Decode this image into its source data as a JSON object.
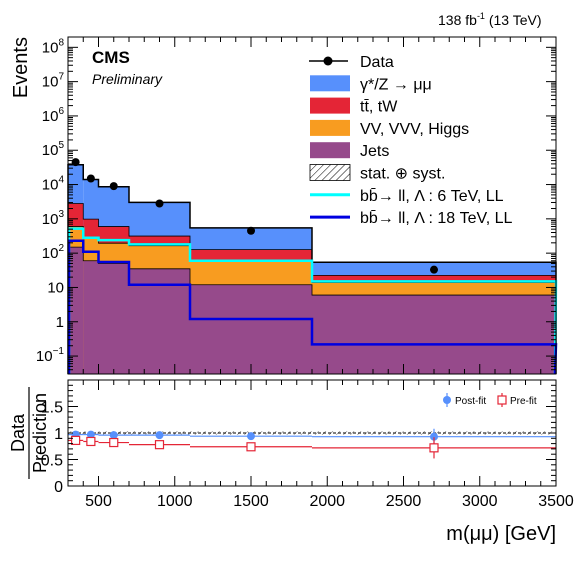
{
  "header": {
    "lumi": "138 fb",
    "lumi_exp": "-1",
    "energy": " (13 TeV)",
    "experiment": "CMS",
    "status": "Preliminary"
  },
  "chart_data": [
    {
      "type": "bar",
      "name": "main",
      "ylabel": "Events",
      "yscale": "log",
      "ylim": [
        0.03,
        200000000
      ],
      "xlim": [
        300,
        3500
      ],
      "bin_edges": [
        300,
        400,
        500,
        700,
        1100,
        1900,
        3500
      ],
      "stack": [
        {
          "name": "Jets",
          "color": "#964a8b",
          "values": [
            150,
            60,
            50,
            35,
            12,
            6
          ]
        },
        {
          "name": "VV, VVV, Higgs",
          "color": "#f89c20",
          "values": [
            450,
            220,
            145,
            130,
            45,
            8
          ]
        },
        {
          "name": "tt̄, tW",
          "color": "#e42536",
          "values": [
            2200,
            700,
            400,
            150,
            70,
            8.5
          ]
        },
        {
          "name": "γ*/Z → μμ",
          "color": "#5790fc",
          "values": [
            35000,
            13000,
            8000,
            2700,
            420,
            32
          ]
        }
      ],
      "data_points": {
        "name": "Data",
        "x": [
          350,
          450,
          600,
          900,
          1500,
          2700
        ],
        "y": [
          45000,
          15000,
          9000,
          2800,
          450,
          33
        ]
      },
      "signals": [
        {
          "name": "bb̄→ ll, Λ : 6 TeV, LL",
          "color": "#00ffff",
          "values": [
            520,
            280,
            240,
            180,
            60,
            15
          ]
        },
        {
          "name": "bb̄→ ll, Λ : 18 TeV, LL",
          "color": "#0000e0",
          "values": [
            230,
            110,
            55,
            12,
            1.2,
            0.22
          ]
        }
      ],
      "legend": [
        {
          "label": "Data",
          "kind": "marker"
        },
        {
          "label": "γ*/Z → μμ",
          "kind": "fill",
          "color": "#5790fc"
        },
        {
          "label": "tt̄, tW",
          "kind": "fill",
          "color": "#e42536"
        },
        {
          "label": "VV, VVV, Higgs",
          "kind": "fill",
          "color": "#f89c20"
        },
        {
          "label": "Jets",
          "kind": "fill",
          "color": "#964a8b"
        },
        {
          "label": "stat. ⊕ syst.",
          "kind": "hatch"
        },
        {
          "label": "bb̄→ ll, Λ : 6 TeV, LL",
          "kind": "line",
          "color": "#00ffff"
        },
        {
          "label": "bb̄→ ll, Λ : 18 TeV, LL",
          "kind": "line",
          "color": "#0000e0"
        }
      ],
      "y_tick_labels": [
        {
          "base": "10",
          "exp": "8",
          "v": 100000000
        },
        {
          "base": "10",
          "exp": "7",
          "v": 10000000
        },
        {
          "base": "10",
          "exp": "6",
          "v": 1000000
        },
        {
          "base": "10",
          "exp": "5",
          "v": 100000
        },
        {
          "base": "10",
          "exp": "4",
          "v": 10000
        },
        {
          "base": "10",
          "exp": "3",
          "v": 1000
        },
        {
          "base": "10",
          "exp": "2",
          "v": 100
        },
        {
          "base": "10",
          "exp": "",
          "v": 10
        },
        {
          "base": "1",
          "exp": "",
          "v": 1
        },
        {
          "base": "10",
          "exp": "−1",
          "v": 0.1
        }
      ]
    },
    {
      "type": "scatter",
      "name": "ratio",
      "ylabel_top": "Data",
      "ylabel_bottom": "Prediction",
      "ylim": [
        0,
        2
      ],
      "xlim": [
        300,
        3500
      ],
      "y_ticks": [
        0,
        0.5,
        1,
        1.5
      ],
      "y_tick_labels": [
        "0",
        "0.5",
        "1",
        "1.5"
      ],
      "x_ticks": [
        500,
        1000,
        1500,
        2000,
        2500,
        3000,
        3500
      ],
      "x_tick_labels": [
        "500",
        "1000",
        "1500",
        "2000",
        "2500",
        "3000",
        "3500"
      ],
      "xlabel": "m(μμ) [GeV]",
      "series": [
        {
          "name": "Post-fit",
          "color": "#5790fc",
          "x": [
            350,
            450,
            600,
            900,
            1500,
            2700
          ],
          "y": [
            0.97,
            0.97,
            0.96,
            0.96,
            0.94,
            0.93
          ],
          "yerr": [
            0.02,
            0.02,
            0.02,
            0.02,
            0.03,
            0.15
          ]
        },
        {
          "name": "Pre-fit",
          "color": "#e42536",
          "x": [
            350,
            450,
            600,
            900,
            1500,
            2700
          ],
          "y": [
            0.86,
            0.84,
            0.82,
            0.78,
            0.74,
            0.72
          ],
          "yerr": [
            0.06,
            0.06,
            0.05,
            0.05,
            0.05,
            0.2
          ]
        }
      ],
      "bin_edges": [
        300,
        400,
        500,
        700,
        1100,
        1900,
        3500
      ]
    }
  ]
}
